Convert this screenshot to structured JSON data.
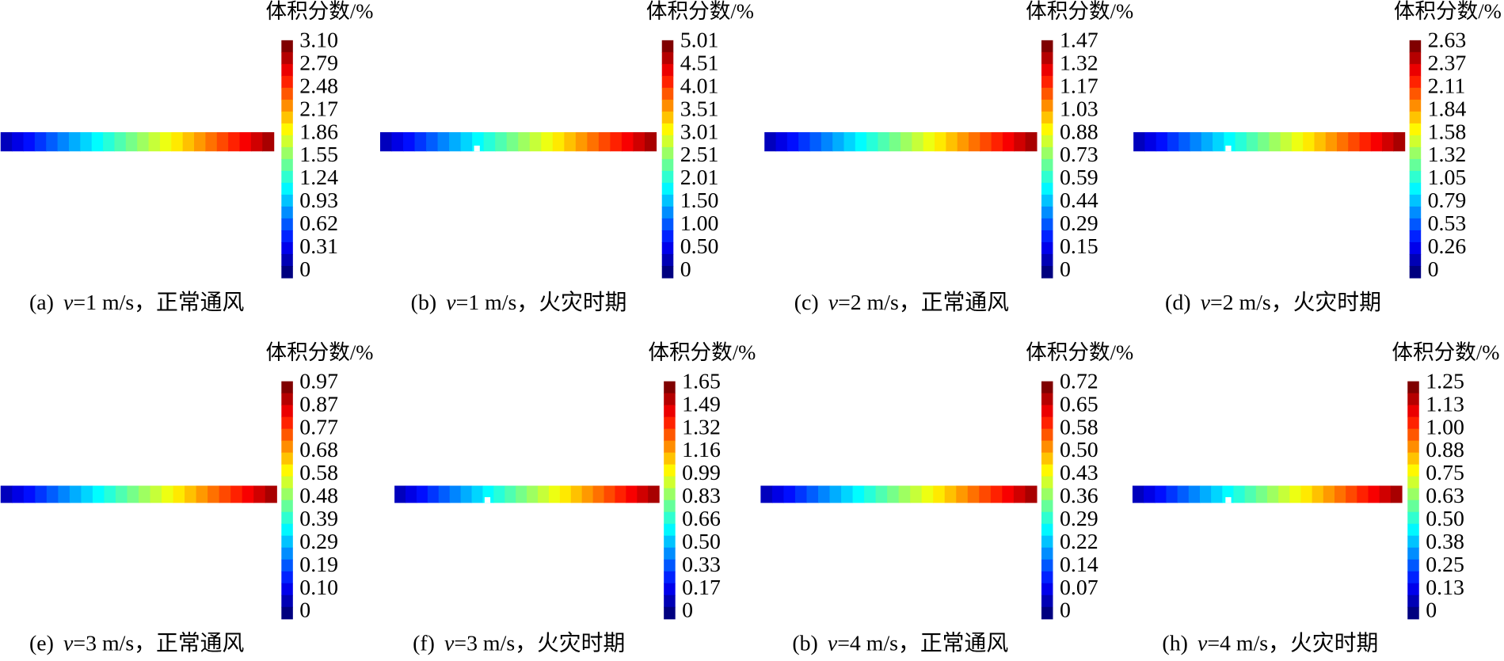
{
  "panels": [
    {
      "label": "(a)",
      "variable": "v",
      "condition": "=1 m/s，正常通风",
      "colorbar_title": "体积分数/%",
      "ticks": [
        "3.10",
        "2.79",
        "2.48",
        "2.17",
        "1.86",
        "1.55",
        "1.24",
        "0.93",
        "0.62",
        "0.31",
        "0"
      ]
    },
    {
      "label": "(b)",
      "variable": "v",
      "condition": "=1 m/s，火灾时期",
      "colorbar_title": "体积分数/%",
      "ticks": [
        "5.01",
        "4.51",
        "4.01",
        "3.51",
        "3.01",
        "2.51",
        "2.01",
        "1.50",
        "1.00",
        "0.50",
        "0"
      ]
    },
    {
      "label": "(c)",
      "variable": "v",
      "condition": "=2 m/s，正常通风",
      "colorbar_title": "体积分数/%",
      "ticks": [
        "1.47",
        "1.32",
        "1.17",
        "1.03",
        "0.88",
        "0.73",
        "0.59",
        "0.44",
        "0.29",
        "0.15",
        "0"
      ]
    },
    {
      "label": "(d)",
      "variable": "v",
      "condition": "=2 m/s，火灾时期",
      "colorbar_title": "体积分数/%",
      "ticks": [
        "2.63",
        "2.37",
        "2.11",
        "1.84",
        "1.58",
        "1.32",
        "1.05",
        "0.79",
        "0.53",
        "0.26",
        "0"
      ]
    },
    {
      "label": "(e)",
      "variable": "v",
      "condition": "=3 m/s，正常通风",
      "colorbar_title": "体积分数/%",
      "ticks": [
        "0.97",
        "0.87",
        "0.77",
        "0.68",
        "0.58",
        "0.48",
        "0.39",
        "0.29",
        "0.19",
        "0.10",
        "0"
      ]
    },
    {
      "label": "(f)",
      "variable": "v",
      "condition": "=3 m/s，火灾时期",
      "colorbar_title": "体积分数/%",
      "ticks": [
        "1.65",
        "1.49",
        "1.32",
        "1.16",
        "0.99",
        "0.83",
        "0.66",
        "0.50",
        "0.33",
        "0.17",
        "0"
      ]
    },
    {
      "label": "(b)",
      "variable": "v",
      "condition": "=4 m/s，正常通风",
      "colorbar_title": "体积分数/%",
      "ticks": [
        "0.72",
        "0.65",
        "0.58",
        "0.50",
        "0.43",
        "0.36",
        "0.29",
        "0.22",
        "0.14",
        "0.07",
        "0"
      ]
    },
    {
      "label": "(h)",
      "variable": "v",
      "condition": "=4 m/s，火灾时期",
      "colorbar_title": "体积分数/%",
      "ticks": [
        "1.25",
        "1.13",
        "1.00",
        "0.88",
        "0.75",
        "0.63",
        "0.50",
        "0.38",
        "0.25",
        "0.13",
        "0"
      ]
    }
  ]
}
